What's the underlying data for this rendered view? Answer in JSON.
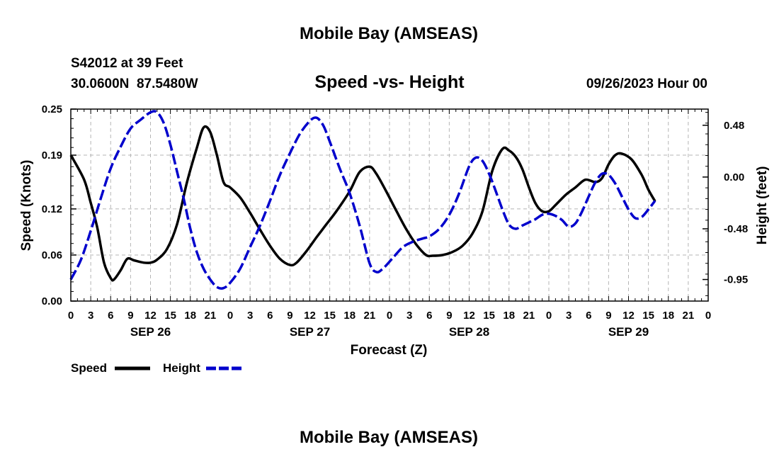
{
  "header": {
    "title_top": "Mobile Bay (AMSEAS)",
    "station_line": "S42012 at 39 Feet",
    "coords_line": "30.0600N  87.5480W",
    "chart_title": "Speed -vs- Height",
    "run_time": "09/26/2023 Hour 00",
    "title_bottom": "Mobile Bay (AMSEAS)"
  },
  "chart_data": {
    "type": "line",
    "title": "Speed -vs- Height",
    "xlabel": "Forecast (Z)",
    "ylabel_left": "Speed (Knots)",
    "ylabel_right": "Height (feet)",
    "x_range_hours": [
      0,
      96
    ],
    "ylim_left": [
      0,
      0.25
    ],
    "ylim_right": [
      -1.15,
      0.63
    ],
    "left_ticks": [
      "0.25",
      "0.19",
      "0.12",
      "0.06",
      "0.00"
    ],
    "left_tick_values": [
      0.25,
      0.19,
      0.12,
      0.06,
      0.0
    ],
    "right_ticks": [
      "0.48",
      "0.00",
      "-0.48",
      "-0.95"
    ],
    "right_tick_values": [
      0.48,
      0.0,
      -0.48,
      -0.95
    ],
    "x_tick_labels": [
      "0",
      "3",
      "6",
      "9",
      "12",
      "15",
      "18",
      "21",
      "0",
      "3",
      "6",
      "9",
      "12",
      "15",
      "18",
      "21",
      "0",
      "3",
      "6",
      "9",
      "12",
      "15",
      "18",
      "21",
      "0",
      "3",
      "6",
      "9",
      "12",
      "15",
      "18",
      "21",
      "0"
    ],
    "day_labels": [
      {
        "label": "SEP 26",
        "hour": 12
      },
      {
        "label": "SEP 27",
        "hour": 36
      },
      {
        "label": "SEP 28",
        "hour": 60
      },
      {
        "label": "SEP 29",
        "hour": 84
      }
    ],
    "grid": true,
    "legend_position": "bottom-left",
    "series": [
      {
        "name": "Speed",
        "axis": "left",
        "color": "#000000",
        "style": "solid",
        "points": [
          [
            0,
            0.19
          ],
          [
            2,
            0.158
          ],
          [
            3,
            0.128
          ],
          [
            4,
            0.095
          ],
          [
            5,
            0.05
          ],
          [
            6,
            0.03
          ],
          [
            6.5,
            0.028
          ],
          [
            7.5,
            0.04
          ],
          [
            8.5,
            0.055
          ],
          [
            9.5,
            0.053
          ],
          [
            11,
            0.05
          ],
          [
            12,
            0.05
          ],
          [
            13,
            0.054
          ],
          [
            14.5,
            0.068
          ],
          [
            16,
            0.1
          ],
          [
            17.5,
            0.155
          ],
          [
            19,
            0.2
          ],
          [
            20,
            0.226
          ],
          [
            21,
            0.22
          ],
          [
            22,
            0.19
          ],
          [
            23,
            0.155
          ],
          [
            24,
            0.148
          ],
          [
            25.5,
            0.135
          ],
          [
            27,
            0.115
          ],
          [
            28.5,
            0.093
          ],
          [
            30,
            0.072
          ],
          [
            31.5,
            0.055
          ],
          [
            33,
            0.047
          ],
          [
            34,
            0.05
          ],
          [
            35.5,
            0.065
          ],
          [
            37,
            0.083
          ],
          [
            38.5,
            0.1
          ],
          [
            40,
            0.117
          ],
          [
            42,
            0.143
          ],
          [
            43.5,
            0.168
          ],
          [
            45,
            0.175
          ],
          [
            46,
            0.166
          ],
          [
            47.5,
            0.143
          ],
          [
            49,
            0.118
          ],
          [
            50.5,
            0.094
          ],
          [
            52,
            0.074
          ],
          [
            53.5,
            0.06
          ],
          [
            54.5,
            0.059
          ],
          [
            56,
            0.06
          ],
          [
            57.5,
            0.064
          ],
          [
            59,
            0.072
          ],
          [
            60.5,
            0.088
          ],
          [
            62,
            0.117
          ],
          [
            63.5,
            0.17
          ],
          [
            65,
            0.198
          ],
          [
            66,
            0.196
          ],
          [
            67,
            0.188
          ],
          [
            68,
            0.172
          ],
          [
            69,
            0.148
          ],
          [
            70,
            0.127
          ],
          [
            71,
            0.117
          ],
          [
            72,
            0.117
          ],
          [
            73,
            0.125
          ],
          [
            74.5,
            0.138
          ],
          [
            76,
            0.148
          ],
          [
            77.5,
            0.158
          ],
          [
            79,
            0.155
          ],
          [
            80,
            0.16
          ],
          [
            81,
            0.178
          ],
          [
            82,
            0.19
          ],
          [
            83,
            0.192
          ],
          [
            84.5,
            0.184
          ],
          [
            86,
            0.164
          ],
          [
            87,
            0.145
          ],
          [
            88,
            0.13
          ]
        ]
      },
      {
        "name": "Height",
        "axis": "right",
        "color": "#0000cc",
        "style": "dashed",
        "points": [
          [
            0,
            -0.95
          ],
          [
            1.5,
            -0.77
          ],
          [
            3,
            -0.5
          ],
          [
            4.5,
            -0.2
          ],
          [
            6,
            0.08
          ],
          [
            7.5,
            0.28
          ],
          [
            9,
            0.45
          ],
          [
            10.5,
            0.53
          ],
          [
            12,
            0.6
          ],
          [
            13,
            0.6
          ],
          [
            14,
            0.5
          ],
          [
            15,
            0.3
          ],
          [
            16,
            0.05
          ],
          [
            17,
            -0.2
          ],
          [
            18,
            -0.48
          ],
          [
            19,
            -0.7
          ],
          [
            20,
            -0.85
          ],
          [
            21,
            -0.95
          ],
          [
            22,
            -1.02
          ],
          [
            23,
            -1.03
          ],
          [
            24,
            -0.98
          ],
          [
            25.5,
            -0.85
          ],
          [
            27,
            -0.65
          ],
          [
            28.5,
            -0.45
          ],
          [
            30,
            -0.22
          ],
          [
            31.5,
            0.02
          ],
          [
            33,
            0.22
          ],
          [
            34.5,
            0.4
          ],
          [
            36,
            0.52
          ],
          [
            37,
            0.55
          ],
          [
            38,
            0.48
          ],
          [
            39,
            0.33
          ],
          [
            40.5,
            0.08
          ],
          [
            42,
            -0.15
          ],
          [
            43.5,
            -0.45
          ],
          [
            45,
            -0.8
          ],
          [
            46,
            -0.88
          ],
          [
            47,
            -0.85
          ],
          [
            48.5,
            -0.75
          ],
          [
            50,
            -0.65
          ],
          [
            51.5,
            -0.6
          ],
          [
            53,
            -0.57
          ],
          [
            54,
            -0.55
          ],
          [
            55.5,
            -0.48
          ],
          [
            57,
            -0.35
          ],
          [
            58.5,
            -0.15
          ],
          [
            60,
            0.1
          ],
          [
            61,
            0.18
          ],
          [
            62,
            0.15
          ],
          [
            63,
            0.03
          ],
          [
            64,
            -0.13
          ],
          [
            65,
            -0.3
          ],
          [
            66,
            -0.44
          ],
          [
            67,
            -0.48
          ],
          [
            68,
            -0.45
          ],
          [
            69,
            -0.42
          ],
          [
            70,
            -0.39
          ],
          [
            71,
            -0.35
          ],
          [
            72,
            -0.34
          ],
          [
            73,
            -0.36
          ],
          [
            74,
            -0.4
          ],
          [
            75,
            -0.46
          ],
          [
            76,
            -0.43
          ],
          [
            77,
            -0.32
          ],
          [
            78,
            -0.18
          ],
          [
            79,
            -0.05
          ],
          [
            80,
            0.03
          ],
          [
            81,
            0.02
          ],
          [
            82,
            -0.06
          ],
          [
            83,
            -0.18
          ],
          [
            84,
            -0.3
          ],
          [
            85,
            -0.38
          ],
          [
            86,
            -0.37
          ],
          [
            87,
            -0.3
          ],
          [
            88,
            -0.22
          ]
        ]
      }
    ]
  },
  "legend": {
    "speed_label": "Speed",
    "height_label": "Height"
  }
}
